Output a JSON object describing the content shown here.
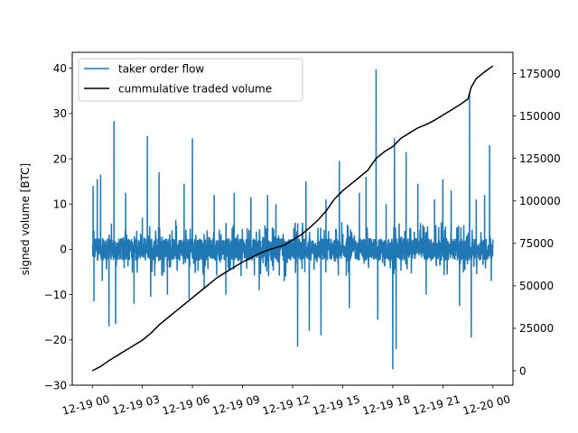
{
  "chart_data": {
    "type": "line",
    "title": "",
    "xlabel": "",
    "ylabel": "signed volume [BTC]",
    "y2label": "",
    "xlim_hours": [
      -1.2,
      25.2
    ],
    "ylim": [
      -30,
      43.5
    ],
    "y2lim": [
      -8500,
      187500
    ],
    "x_ticks": [
      {
        "hour": 0,
        "label": "12-19 00"
      },
      {
        "hour": 3,
        "label": "12-19 03"
      },
      {
        "hour": 6,
        "label": "12-19 06"
      },
      {
        "hour": 9,
        "label": "12-19 09"
      },
      {
        "hour": 12,
        "label": "12-19 12"
      },
      {
        "hour": 15,
        "label": "12-19 15"
      },
      {
        "hour": 18,
        "label": "12-19 18"
      },
      {
        "hour": 21,
        "label": "12-19 21"
      },
      {
        "hour": 24,
        "label": "12-20 00"
      }
    ],
    "y_ticks": [
      -30,
      -20,
      -10,
      0,
      10,
      20,
      30,
      40
    ],
    "y2_ticks": [
      0,
      25000,
      50000,
      75000,
      100000,
      125000,
      150000,
      175000
    ],
    "legend_position": "upper-left",
    "grid": false,
    "series": [
      {
        "name": "taker order flow",
        "axis": "left",
        "color": "#1f77b4",
        "baseline_amplitude": 2.5,
        "dense_band": [
          -4,
          4
        ],
        "spikes": [
          {
            "hour": 0.05,
            "value": 14
          },
          {
            "hour": 0.1,
            "value": -11.5
          },
          {
            "hour": 0.3,
            "value": 15.5
          },
          {
            "hour": 0.5,
            "value": 16.5
          },
          {
            "hour": 0.6,
            "value": -7
          },
          {
            "hour": 1.0,
            "value": -17
          },
          {
            "hour": 1.3,
            "value": 28.3
          },
          {
            "hour": 1.4,
            "value": -16.5
          },
          {
            "hour": 2.0,
            "value": 12.5
          },
          {
            "hour": 2.5,
            "value": -12
          },
          {
            "hour": 3.0,
            "value": 7
          },
          {
            "hour": 3.3,
            "value": 25
          },
          {
            "hour": 3.5,
            "value": -10.5
          },
          {
            "hour": 4.0,
            "value": 17
          },
          {
            "hour": 4.5,
            "value": -10
          },
          {
            "hour": 5.0,
            "value": 6.5
          },
          {
            "hour": 5.5,
            "value": 14.5
          },
          {
            "hour": 5.8,
            "value": -11
          },
          {
            "hour": 6.0,
            "value": 24.5
          },
          {
            "hour": 6.7,
            "value": -8.5
          },
          {
            "hour": 7.3,
            "value": 12
          },
          {
            "hour": 8.0,
            "value": -10
          },
          {
            "hour": 8.5,
            "value": 12.5
          },
          {
            "hour": 9.5,
            "value": 11.5
          },
          {
            "hour": 10.0,
            "value": -9
          },
          {
            "hour": 10.5,
            "value": 12
          },
          {
            "hour": 11.0,
            "value": 10
          },
          {
            "hour": 11.5,
            "value": -7
          },
          {
            "hour": 12.3,
            "value": -21.5
          },
          {
            "hour": 12.8,
            "value": 15
          },
          {
            "hour": 13.0,
            "value": -18
          },
          {
            "hour": 13.7,
            "value": -19
          },
          {
            "hour": 14.0,
            "value": 11
          },
          {
            "hour": 14.8,
            "value": 19.5
          },
          {
            "hour": 15.4,
            "value": -13
          },
          {
            "hour": 16.0,
            "value": 12.5
          },
          {
            "hour": 16.4,
            "value": 16
          },
          {
            "hour": 17.0,
            "value": 39.8
          },
          {
            "hour": 17.1,
            "value": -15.5
          },
          {
            "hour": 17.6,
            "value": 10
          },
          {
            "hour": 18.0,
            "value": -26.5
          },
          {
            "hour": 18.1,
            "value": 24.5
          },
          {
            "hour": 18.2,
            "value": -22
          },
          {
            "hour": 18.8,
            "value": 21.5
          },
          {
            "hour": 19.5,
            "value": 14.5
          },
          {
            "hour": 20.0,
            "value": -10
          },
          {
            "hour": 20.5,
            "value": 11
          },
          {
            "hour": 21.0,
            "value": 15.5
          },
          {
            "hour": 21.5,
            "value": 13
          },
          {
            "hour": 22.0,
            "value": -12.5
          },
          {
            "hour": 22.6,
            "value": 34.5
          },
          {
            "hour": 22.7,
            "value": -19.5
          },
          {
            "hour": 23.0,
            "value": 11
          },
          {
            "hour": 23.5,
            "value": 12
          },
          {
            "hour": 23.8,
            "value": 23
          },
          {
            "hour": 23.9,
            "value": -7
          }
        ]
      },
      {
        "name": "cummulative traded volume",
        "axis": "right",
        "color": "#000000",
        "x_hours": [
          0,
          0.5,
          1,
          1.5,
          2,
          2.5,
          3,
          3.5,
          4,
          4.5,
          5,
          5.5,
          6,
          6.5,
          7,
          7.5,
          8,
          8.5,
          9,
          9.5,
          10,
          10.5,
          11,
          11.5,
          12,
          12.5,
          13,
          13.5,
          14,
          14.5,
          15,
          15.5,
          16,
          16.5,
          17,
          17.5,
          18,
          18.5,
          19,
          19.5,
          20,
          20.5,
          21,
          21.5,
          22,
          22.5,
          22.7,
          23,
          23.5,
          24
        ],
        "values": [
          0,
          2500,
          6000,
          9000,
          12000,
          15000,
          18000,
          22000,
          27000,
          31000,
          35000,
          39000,
          43000,
          47000,
          51000,
          55000,
          58000,
          61000,
          64000,
          66500,
          69000,
          71000,
          72500,
          74000,
          77000,
          80000,
          84000,
          88500,
          94000,
          101000,
          106000,
          110000,
          114000,
          118000,
          125000,
          129000,
          132000,
          137000,
          140000,
          143000,
          145000,
          147500,
          150500,
          153500,
          156500,
          160000,
          167000,
          172000,
          176000,
          179500
        ]
      }
    ]
  }
}
